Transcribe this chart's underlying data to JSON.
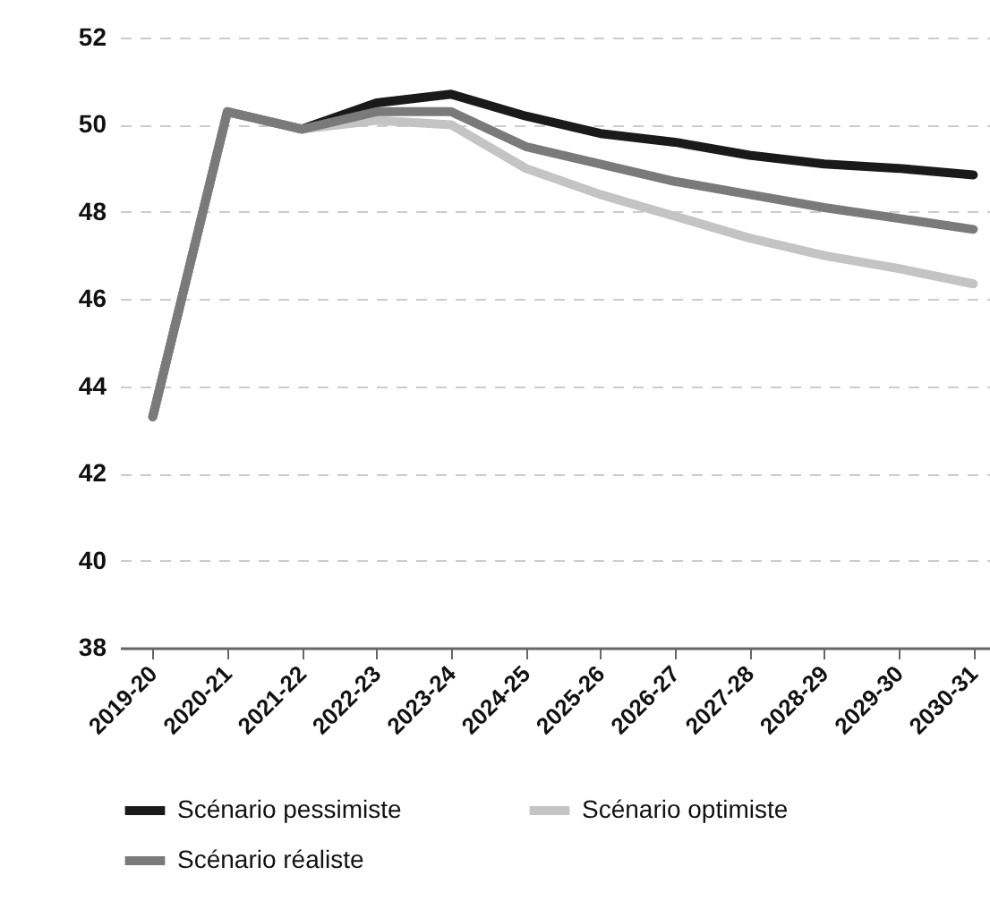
{
  "chart_data": {
    "type": "line",
    "categories": [
      "2019-20",
      "2020-21",
      "2021-22",
      "2022-23",
      "2023-24",
      "2024-25",
      "2025-26",
      "2026-27",
      "2027-28",
      "2028-29",
      "2029-30",
      "2030-31"
    ],
    "series": [
      {
        "name": "Scénario pessimiste",
        "color": "#1a1a1a",
        "values": [
          43.3,
          50.3,
          49.9,
          50.5,
          50.7,
          50.2,
          49.8,
          49.6,
          49.3,
          49.1,
          49.0,
          48.85
        ]
      },
      {
        "name": "Scénario optimiste",
        "color": "#c4c4c4",
        "values": [
          43.3,
          50.3,
          49.9,
          50.1,
          50.0,
          49.0,
          48.4,
          47.9,
          47.4,
          47.0,
          46.7,
          46.35
        ]
      },
      {
        "name": "Scénario réaliste",
        "color": "#7a7a7a",
        "values": [
          43.3,
          50.3,
          49.9,
          50.3,
          50.3,
          49.5,
          49.1,
          48.7,
          48.4,
          48.1,
          47.85,
          47.6
        ]
      }
    ],
    "ylim": [
      38,
      52
    ],
    "yticks": [
      38,
      40,
      42,
      44,
      46,
      48,
      50,
      52
    ],
    "grid": "y",
    "legend": "bottom left",
    "marker": "none",
    "line_style": "solid"
  }
}
